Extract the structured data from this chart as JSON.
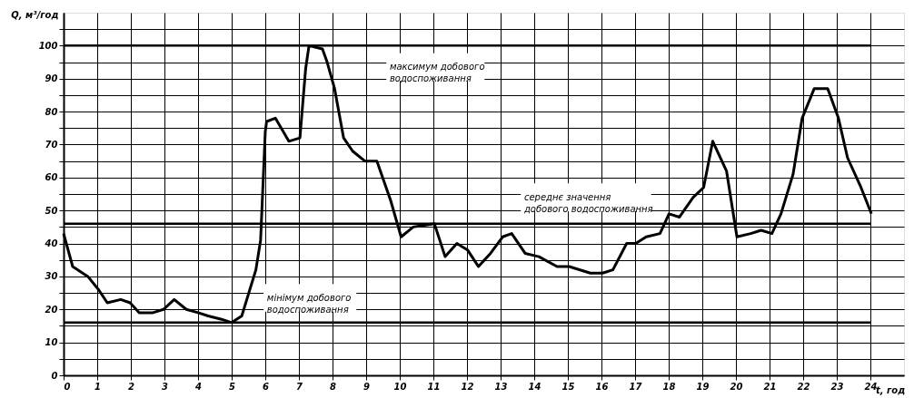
{
  "chart_data": {
    "type": "line",
    "xlabel": "t, год",
    "ylabel": "Q, м³/год",
    "x": [
      0,
      0.27,
      0.72,
      1.04,
      1.3,
      1.7,
      1.98,
      2.25,
      2.66,
      2.97,
      3.29,
      3.65,
      4.0,
      4.3,
      4.7,
      5.0,
      5.3,
      5.72,
      5.86,
      6.0,
      6.04,
      6.3,
      6.7,
      7.03,
      7.2,
      7.3,
      7.7,
      7.84,
      8.06,
      8.33,
      8.6,
      8.96,
      9.32,
      9.73,
      10.04,
      10.4,
      11.03,
      11.35,
      11.7,
      12.02,
      12.34,
      12.7,
      13.06,
      13.33,
      13.73,
      14.14,
      14.68,
      15.04,
      15.67,
      16.03,
      16.34,
      16.75,
      17.02,
      17.33,
      17.74,
      18.01,
      18.32,
      18.73,
      19.04,
      19.31,
      19.72,
      20.03,
      20.44,
      20.75,
      21.07,
      21.34,
      21.7,
      21.97,
      22.33,
      22.73,
      23.05,
      23.32,
      23.72,
      24.03
    ],
    "series": [
      {
        "color": "#000000",
        "values": [
          43,
          33,
          30,
          26,
          22,
          23,
          22,
          19,
          19,
          20,
          23,
          20,
          19,
          18,
          17,
          16,
          18,
          32,
          41,
          74,
          77,
          78,
          71,
          72,
          93,
          100,
          99,
          95,
          87,
          72,
          68,
          65,
          65,
          53,
          42,
          45,
          46,
          36,
          40,
          38,
          33,
          37,
          42,
          43,
          37,
          36,
          33,
          33,
          31,
          31,
          32,
          40,
          40,
          42,
          43,
          49,
          48,
          54,
          57,
          71,
          62,
          42,
          43,
          44,
          43,
          49,
          61,
          78,
          87,
          87,
          78,
          66,
          57,
          49
        ]
      }
    ],
    "xlim": [
      0,
      25
    ],
    "ylim": [
      0,
      110
    ],
    "xticks": [
      0,
      1,
      2,
      3,
      4,
      5,
      6,
      7,
      8,
      9,
      10,
      11,
      12,
      13,
      14,
      15,
      16,
      17,
      18,
      19,
      20,
      21,
      22,
      23,
      24
    ],
    "yticks": [
      0,
      {
        "value": 5,
        "label": null
      },
      10,
      {
        "value": 15,
        "label": null
      },
      20,
      {
        "value": 25,
        "label": null
      },
      30,
      {
        "value": 35,
        "label": null
      },
      40,
      {
        "value": 45,
        "label": null
      },
      50,
      {
        "value": 55,
        "label": null
      },
      60,
      {
        "value": 65,
        "label": null
      },
      70,
      {
        "value": 75,
        "label": null
      },
      80,
      {
        "value": 85,
        "label": null
      },
      90,
      {
        "value": 95,
        "label": null
      },
      100,
      {
        "value": 105,
        "label": null
      }
    ],
    "grid": true,
    "marker": "none",
    "line_style": "solid",
    "ref_lines": [
      {
        "axis": "y",
        "value": 100,
        "label": "максимум добового водоспоживання",
        "color": "#000000"
      },
      {
        "axis": "y",
        "value": 46,
        "label": "середнє значення добового водоспоживання",
        "color": "#000000"
      },
      {
        "axis": "y",
        "value": 16,
        "label": "мінімум добового водоспоживання",
        "color": "#000000"
      }
    ]
  }
}
